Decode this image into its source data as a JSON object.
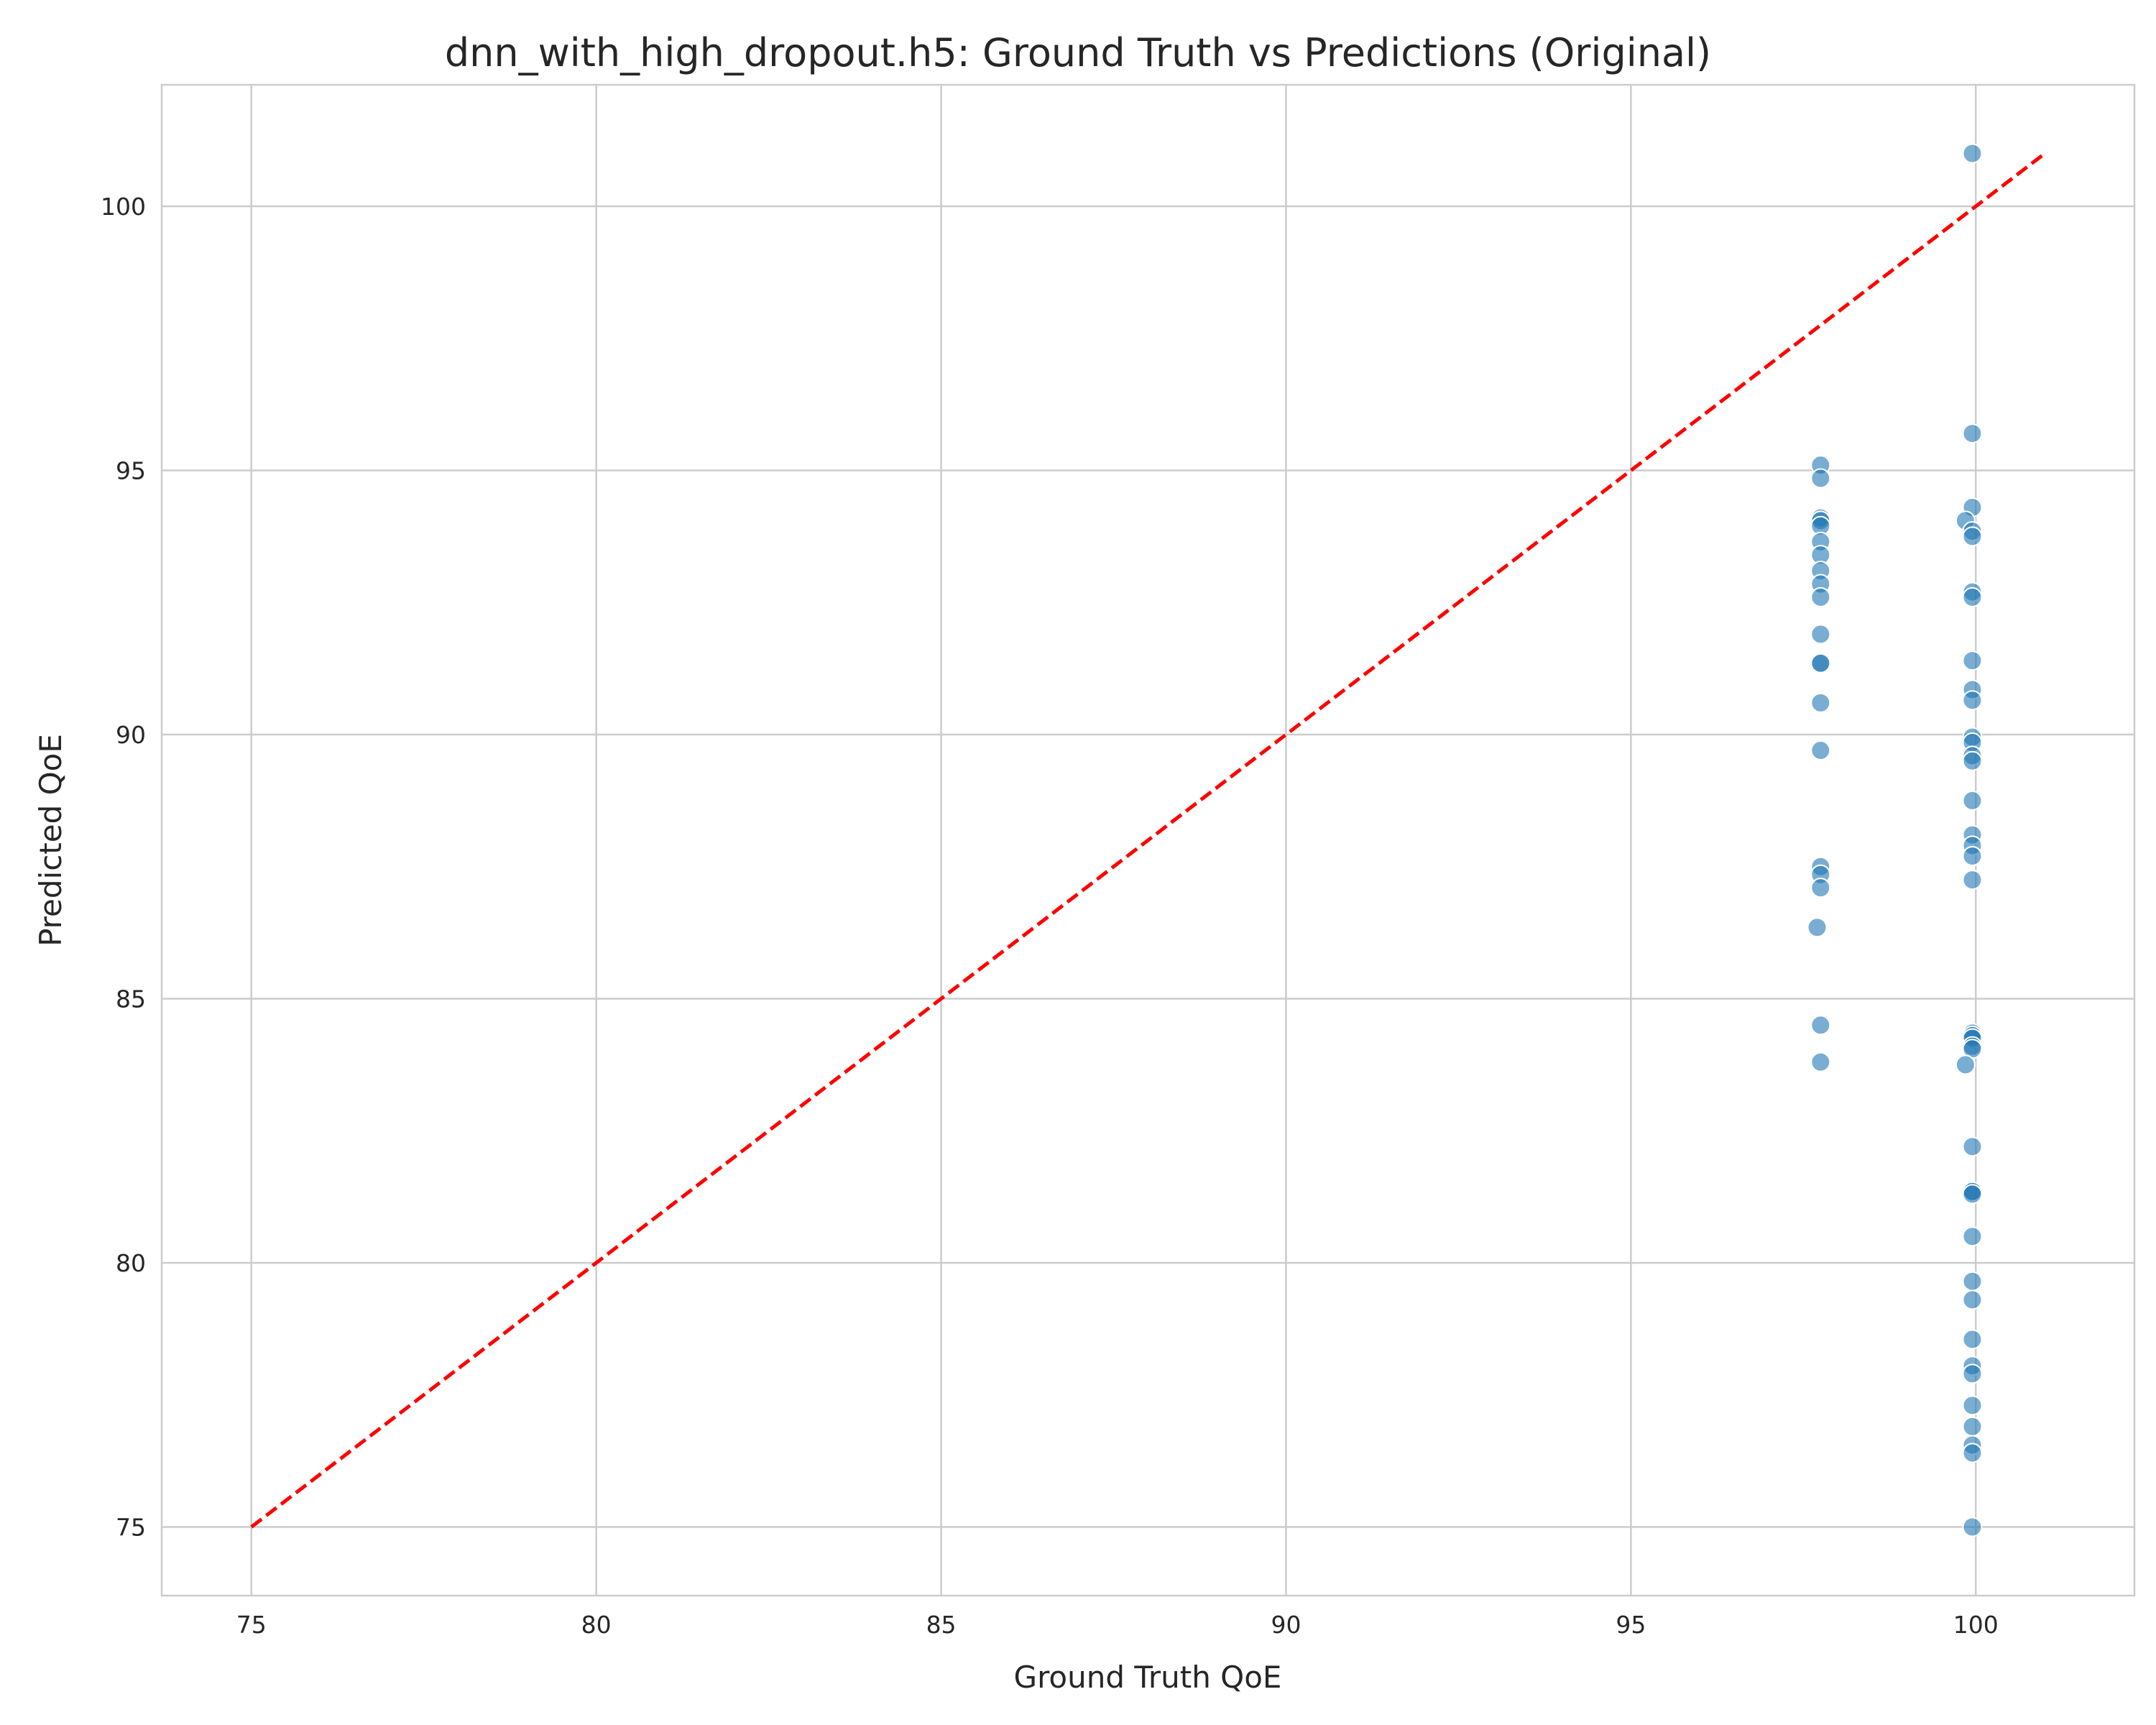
{
  "chart_data": {
    "type": "scatter",
    "title": "dnn_with_high_dropout.h5: Ground Truth vs Predictions (Original)",
    "xlabel": "Ground Truth QoE",
    "ylabel": "Predicted QoE",
    "xlim": [
      73.7,
      102.3
    ],
    "ylim": [
      73.7,
      102.3
    ],
    "xticks": [
      75,
      80,
      85,
      90,
      95,
      100
    ],
    "yticks": [
      75,
      80,
      85,
      90,
      95,
      100
    ],
    "grid": true,
    "point_color": "#1f77b4",
    "reference_line": {
      "style": "dashed",
      "color": "#ff0000",
      "from": [
        75,
        75
      ],
      "to": [
        101,
        101
      ]
    },
    "points": [
      [
        97.75,
        95.1
      ],
      [
        97.75,
        94.85
      ],
      [
        97.75,
        94.1
      ],
      [
        97.75,
        94.05
      ],
      [
        97.75,
        93.95
      ],
      [
        97.75,
        93.65
      ],
      [
        97.75,
        93.4
      ],
      [
        97.75,
        93.1
      ],
      [
        97.75,
        92.85
      ],
      [
        97.75,
        92.6
      ],
      [
        97.75,
        91.9
      ],
      [
        97.75,
        91.35
      ],
      [
        97.75,
        91.35
      ],
      [
        97.75,
        90.6
      ],
      [
        97.75,
        89.7
      ],
      [
        97.75,
        87.5
      ],
      [
        97.75,
        87.35
      ],
      [
        97.75,
        87.1
      ],
      [
        97.7,
        86.35
      ],
      [
        97.75,
        84.5
      ],
      [
        97.75,
        83.8
      ],
      [
        99.95,
        101.0
      ],
      [
        99.95,
        95.7
      ],
      [
        99.95,
        94.3
      ],
      [
        99.85,
        94.05
      ],
      [
        99.95,
        93.85
      ],
      [
        99.95,
        93.75
      ],
      [
        99.95,
        92.7
      ],
      [
        99.95,
        92.6
      ],
      [
        99.95,
        91.4
      ],
      [
        99.95,
        90.85
      ],
      [
        99.95,
        90.65
      ],
      [
        99.95,
        89.95
      ],
      [
        99.95,
        89.85
      ],
      [
        99.95,
        89.6
      ],
      [
        99.95,
        89.5
      ],
      [
        99.95,
        88.75
      ],
      [
        99.95,
        88.1
      ],
      [
        99.95,
        87.9
      ],
      [
        99.95,
        87.7
      ],
      [
        99.95,
        87.25
      ],
      [
        99.95,
        84.35
      ],
      [
        99.95,
        84.3
      ],
      [
        99.95,
        84.25
      ],
      [
        99.95,
        84.1
      ],
      [
        99.95,
        84.05
      ],
      [
        99.85,
        83.75
      ],
      [
        99.95,
        82.2
      ],
      [
        99.95,
        81.35
      ],
      [
        99.95,
        81.35
      ],
      [
        99.95,
        81.3
      ],
      [
        99.95,
        80.5
      ],
      [
        99.95,
        79.65
      ],
      [
        99.95,
        79.3
      ],
      [
        99.95,
        78.55
      ],
      [
        99.95,
        78.05
      ],
      [
        99.95,
        77.9
      ],
      [
        99.95,
        77.3
      ],
      [
        99.95,
        76.9
      ],
      [
        99.95,
        76.55
      ],
      [
        99.95,
        76.4
      ],
      [
        99.95,
        75.0
      ]
    ]
  }
}
